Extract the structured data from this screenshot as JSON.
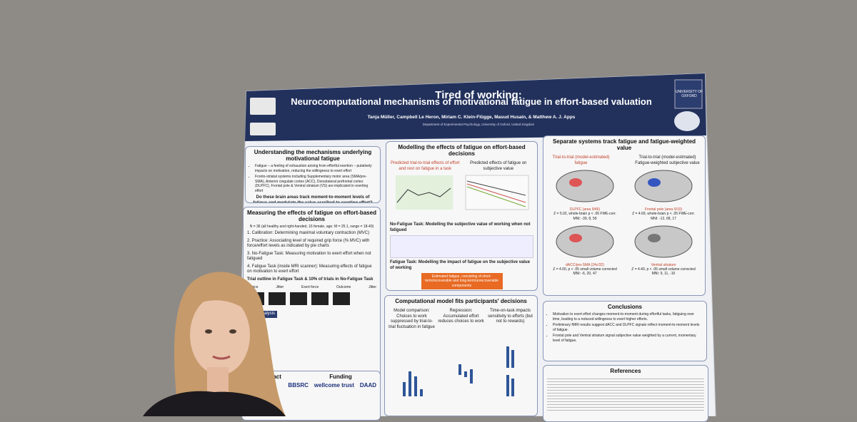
{
  "poster": {
    "university": "UNIVERSITY OF OXFORD",
    "title": "Tired of working:",
    "subtitle": "Neurocomputational mechanisms of motivational fatigue in effort-based valuation",
    "authors": "Tanja Müller, Campbell Le Heron, Miriam C. Klein-Flügge, Masud Husain, & Matthew A. J. Apps",
    "affiliation": "Department of Experimental Psychology, University of Oxford, United Kingdom",
    "intro": {
      "heading": "Understanding the mechanisms underlying motivational fatigue",
      "bullets": [
        "Fatigue – a feeling of exhaustion arising from effortful exertion – putatively impacts on motivation, reducing the willingness to exert effort",
        "Fronto-striatal systems including Supplementary motor area (SMA/pre-SMA), Anterior cingulate cortex (ACC), Dorsolateral prefrontal cortex (DLPFC), Frontal pole & Ventral striatum (VS) are implicated in exerting effort"
      ],
      "question": "Do these brain areas track moment-to-moment levels of fatigue and modulate the value ascribed to exerting effort?"
    },
    "methods": {
      "heading": "Measuring the effects of fatigue on effort-based decisions",
      "sample": "N = 36 (all healthy and right-handed, 16 female, age: M = 25.1, range = 18-40)",
      "steps": [
        "1. Calibration: Determining maximal voluntary contraction (MVC)",
        "2. Practice: Associating level of required grip force (% MVC) with force/effort levels as indicated by pie charts",
        "3. No-Fatigue Task: Measuring motivation to exert effort when not fatigued",
        "4. Fatigue Task (inside MRI scanner): Measuring effects of fatigue on motivation to exert effort"
      ],
      "trial": "Trial outline in Fatigue Task & 10% of trials in No-Fatigue Task",
      "phases": [
        "Choice",
        "Jitter",
        "Exert force",
        "Outcome",
        "Jitter"
      ],
      "analysis": "fMRI analysis"
    },
    "modelling": {
      "heading": "Modelling the effects of fatigue on effort-based decisions",
      "left": "Predicted trial-to-trial effects of effort and rest on fatigue in a task",
      "right": "Predicted effects of fatigue on subjective value",
      "no_fatigue": "No-Fatigue Task: Modelling the subjective value of working when not fatigued",
      "fatigue": "Fatigue Task: Modelling the impact of fatigue on the subjective value of working",
      "note": "Estimated fatigue, consisting of short-term/recoverable and long-term/unrecoverable components"
    },
    "fits": {
      "heading": "Computational model fits participants' decisions",
      "columns": [
        "Model comparison: Choices to work suppressed by trial-to-trial fluctuation in fatigue",
        "Regression: Accumulated effort reduces choices to work",
        "Time-on-task impacts sensitivity to efforts (but not to rewards)"
      ]
    },
    "brain": {
      "heading": "Separate systems track fatigue and fatigue-weighted value",
      "left_title": "Trial-to-trial (model-estimated) fatigue",
      "right_title": "Trial-to-trial (model-estimated) Fatigue-weighted subjective value",
      "regions": [
        [
          "DLPFC (area 9/46)",
          "Z = 5.02, whole-brain p < .05 FWE-corr.",
          "MNI: -39, 8, 59"
        ],
        [
          "Frontal pole (area 9/10)",
          "Z = 4.69, whole-brain p < .05 FWE-corr.",
          "MNI: -12, 68, 17"
        ],
        [
          "dACC/pre-SMA (24c/32)",
          "Z = 4.00, p < .05 small volume corrected",
          "MNI: -6, 20, 47"
        ],
        [
          "Ventral striatum",
          "Z = 4.40, p < .05 small volume corrected",
          "MNI: 9, 11, -10"
        ]
      ]
    },
    "conclusions": {
      "heading": "Conclusions",
      "bullets": [
        "Motivation to exert effort changes moment-to-moment during effortful tasks, fatiguing over time, leading to a reduced willingness to exert higher efforts.",
        "Preliminary fMRI results suggest dACC and DLPFC signals reflect moment-to-moment levels of fatigue.",
        "Frontal pole and Ventral striatum signal subjective value weighted by a current, momentary level of fatigue."
      ]
    },
    "references": {
      "heading": "References"
    },
    "funding": {
      "heading": "Funding",
      "funders": [
        "BBSRC",
        "wellcome trust",
        "DAAD"
      ]
    },
    "contact": {
      "heading": "Contact"
    }
  }
}
